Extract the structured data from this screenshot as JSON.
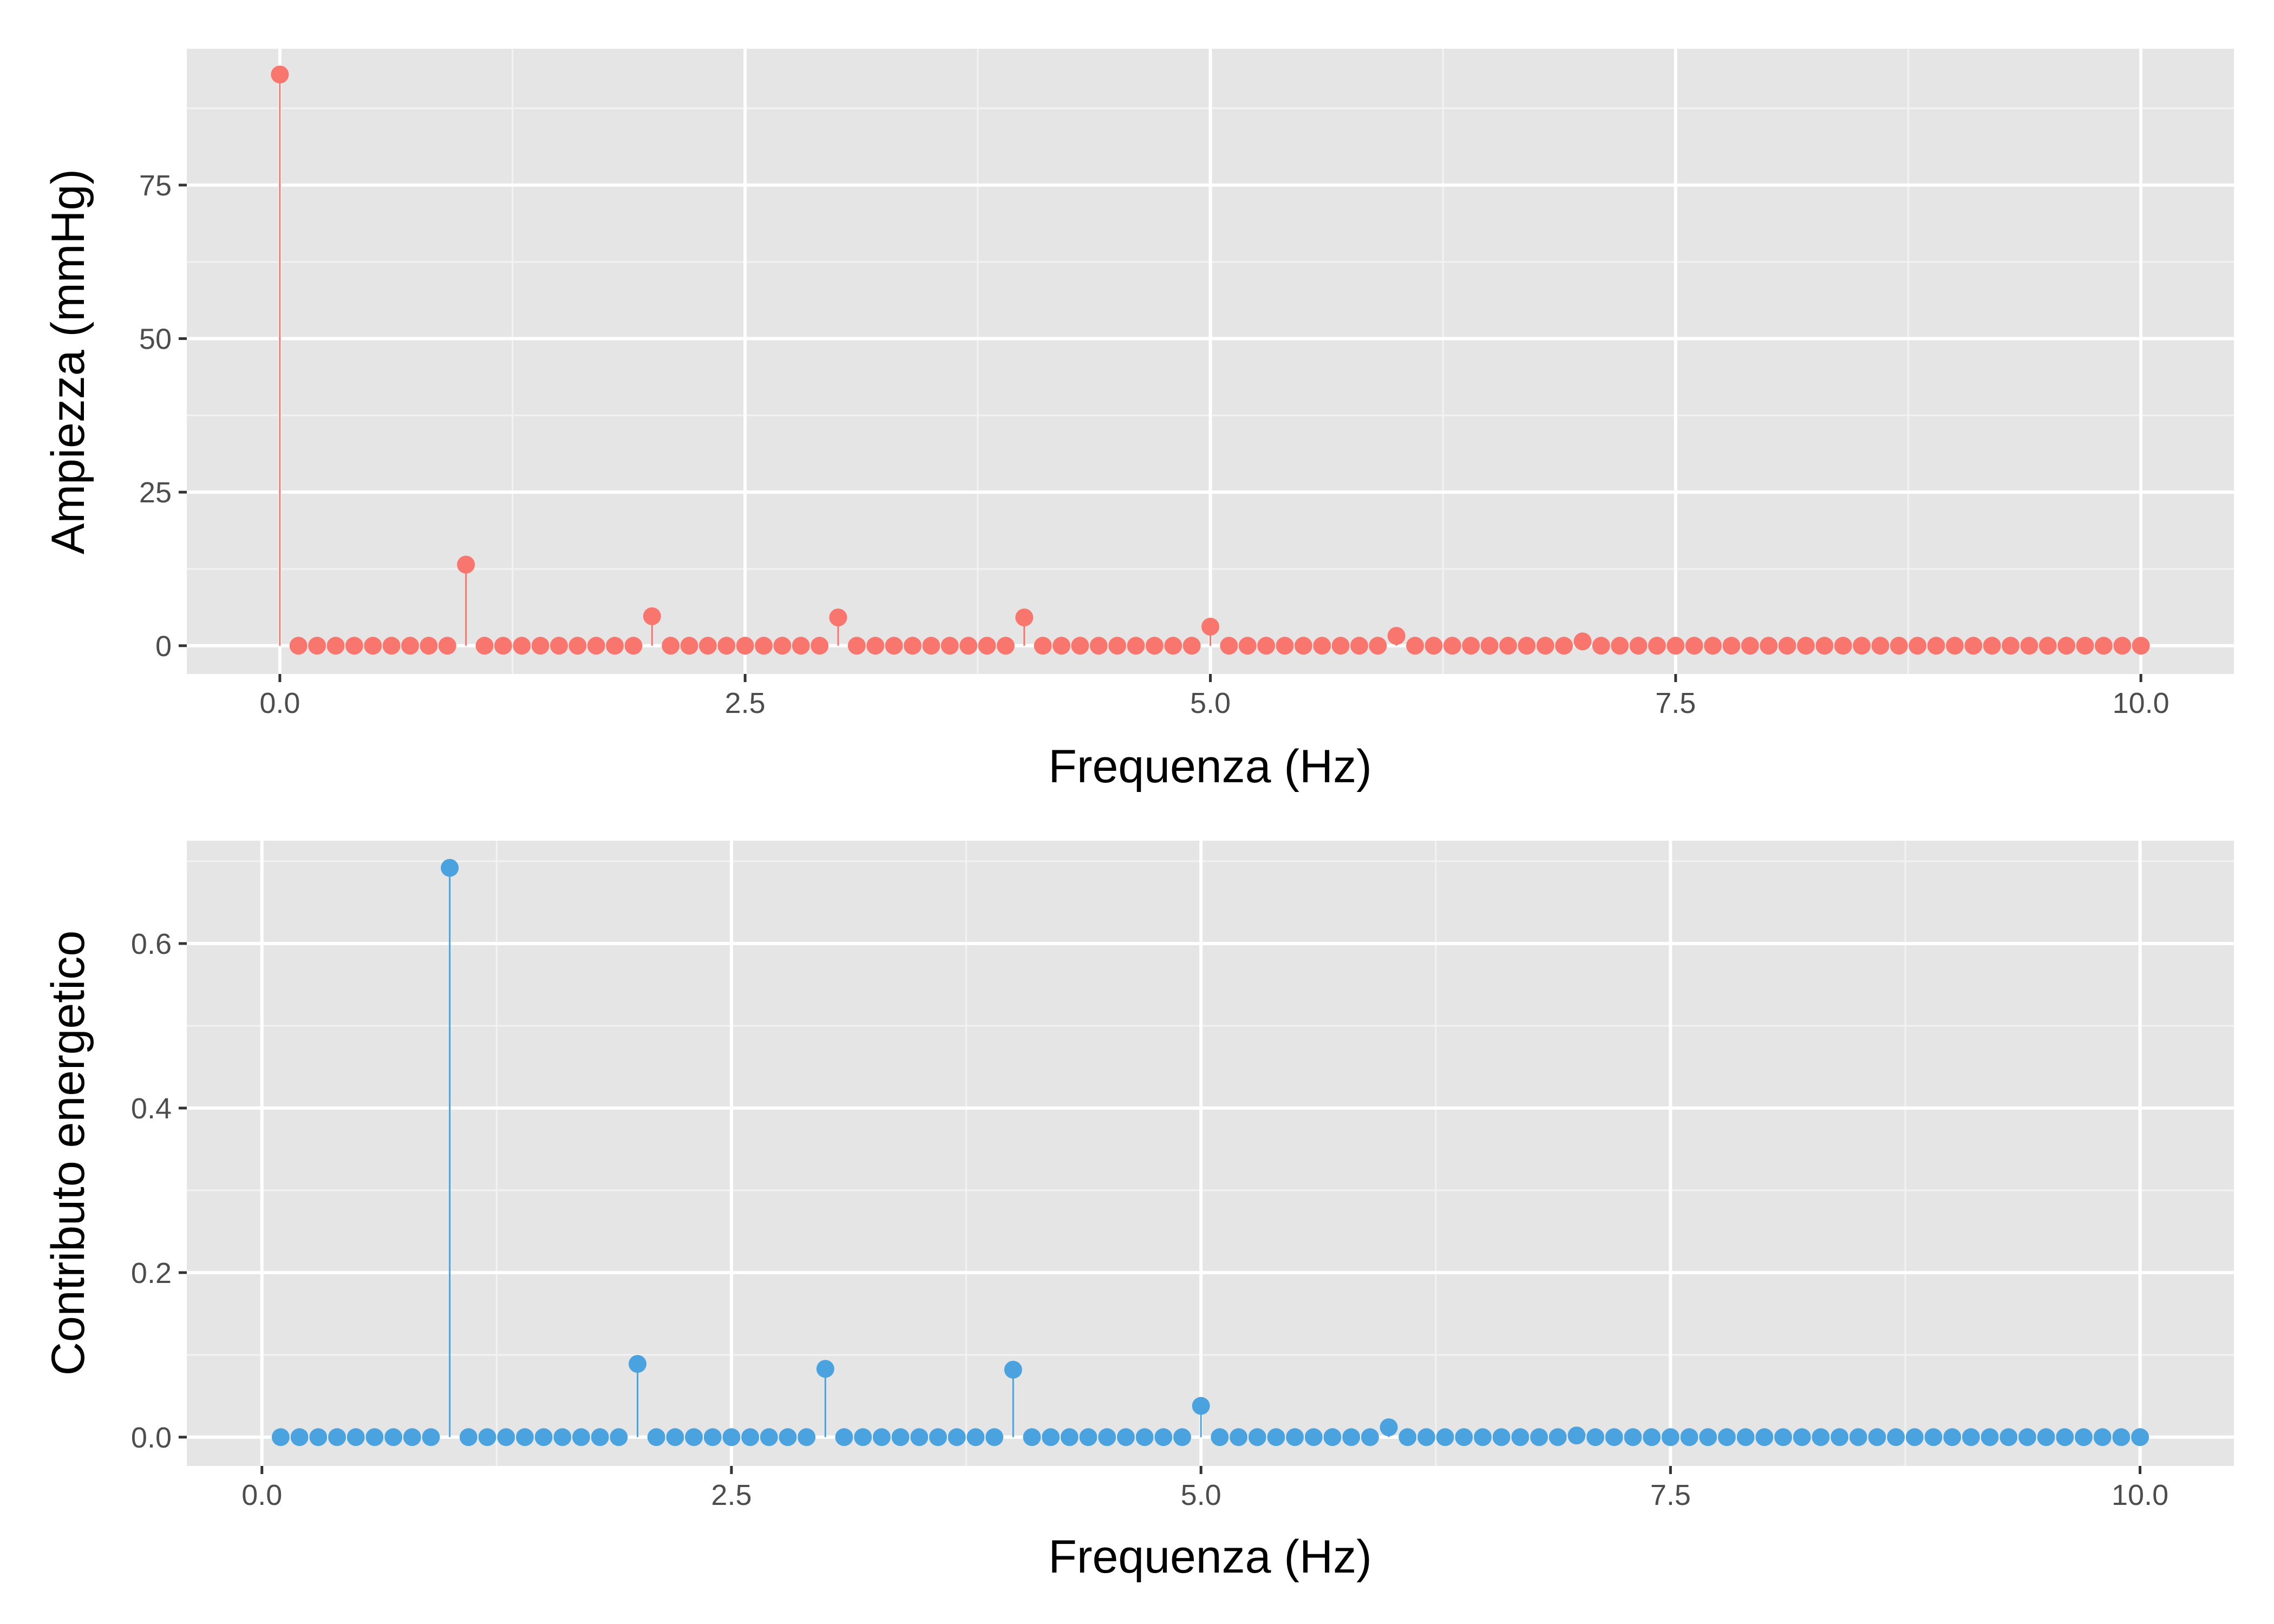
{
  "colors": {
    "panel_background": "#e5e5e5",
    "grid_major": "#ffffff",
    "grid_minor": "#f2f2f2",
    "tick_mark": "#333333"
  },
  "chart_data": [
    {
      "type": "lollipop",
      "xlabel": "Frequenza (Hz)",
      "ylabel": "Ampiezza (mmHg)",
      "xlim": [
        -0.5,
        10.5
      ],
      "ylim": [
        -4.6,
        97.2
      ],
      "x_ticks": [
        0,
        2.5,
        5,
        7.5,
        10
      ],
      "x_tick_labels": [
        "0.0",
        "2.5",
        "5.0",
        "7.5",
        "10.0"
      ],
      "y_ticks": [
        0,
        25,
        50,
        75
      ],
      "y_tick_labels": [
        "0",
        "25",
        "50",
        "75"
      ],
      "grid": true,
      "color": "#f8766d",
      "frequency_step": 0.1,
      "frequency_range": [
        0,
        10
      ],
      "baseline_value": 0,
      "peaks": [
        {
          "x": 0,
          "y": 93
        },
        {
          "x": 1,
          "y": 13.2
        },
        {
          "x": 2,
          "y": 4.8
        },
        {
          "x": 3,
          "y": 4.6
        },
        {
          "x": 4,
          "y": 4.6
        },
        {
          "x": 5,
          "y": 3.1
        },
        {
          "x": 6,
          "y": 1.6
        },
        {
          "x": 7,
          "y": 0.7
        }
      ]
    },
    {
      "type": "lollipop",
      "xlabel": "Frequenza (Hz)",
      "ylabel": "Contributo energetico",
      "xlim": [
        -0.4,
        10.5
      ],
      "ylim": [
        -0.035,
        0.725
      ],
      "x_ticks": [
        0,
        2.5,
        5,
        7.5,
        10
      ],
      "x_tick_labels": [
        "0.0",
        "2.5",
        "5.0",
        "7.5",
        "10.0"
      ],
      "y_ticks": [
        0,
        0.2,
        0.4,
        0.6
      ],
      "y_tick_labels": [
        "0.0",
        "0.2",
        "0.4",
        "0.6"
      ],
      "grid": true,
      "color": "#4aa3df",
      "frequency_step": 0.1,
      "frequency_range": [
        0.1,
        10
      ],
      "baseline_value": 0,
      "peaks": [
        {
          "x": 1,
          "y": 0.692
        },
        {
          "x": 2,
          "y": 0.089
        },
        {
          "x": 3,
          "y": 0.083
        },
        {
          "x": 4,
          "y": 0.082
        },
        {
          "x": 5,
          "y": 0.038
        },
        {
          "x": 6,
          "y": 0.012
        },
        {
          "x": 7,
          "y": 0.002
        }
      ]
    }
  ]
}
